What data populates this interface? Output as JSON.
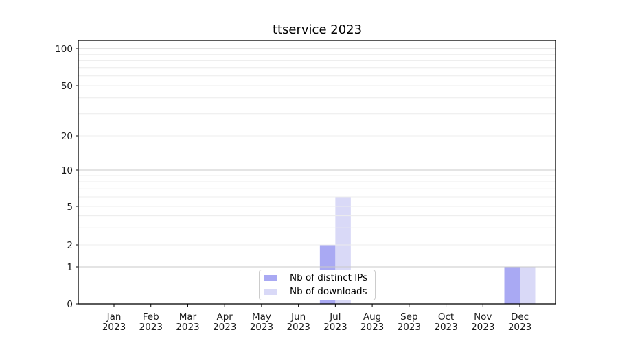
{
  "chart_data": {
    "type": "bar",
    "title": "ttservice 2023",
    "categories": [
      "Jan",
      "Feb",
      "Mar",
      "Apr",
      "May",
      "Jun",
      "Jul",
      "Aug",
      "Sep",
      "Oct",
      "Nov",
      "Dec"
    ],
    "category_year": "2023",
    "series": [
      {
        "name": "Nb of distinct IPs",
        "color": "#a9a9f3",
        "values": [
          0,
          0,
          0,
          0,
          0,
          0,
          2,
          0,
          0,
          0,
          0,
          1
        ]
      },
      {
        "name": "Nb of downloads",
        "color": "#d9d9f7",
        "values": [
          0,
          0,
          0,
          0,
          0,
          0,
          6,
          0,
          0,
          0,
          0,
          1
        ]
      }
    ],
    "xlabel": "",
    "ylabel": "",
    "yscale": "log-like",
    "yticks": [
      0,
      1,
      2,
      5,
      10,
      20,
      50,
      100
    ],
    "minor_grid_values": [
      3,
      4,
      6,
      7,
      8,
      9,
      30,
      40,
      60,
      70,
      80,
      90
    ],
    "ylim": [
      0,
      115
    ],
    "grid": "horizontal-both",
    "legend_position": "bottom-center",
    "colors": {
      "major_grid": "#c9c9c9",
      "minor_grid": "#ececec",
      "axis": "#000000",
      "text": "#1a1a1a"
    }
  }
}
